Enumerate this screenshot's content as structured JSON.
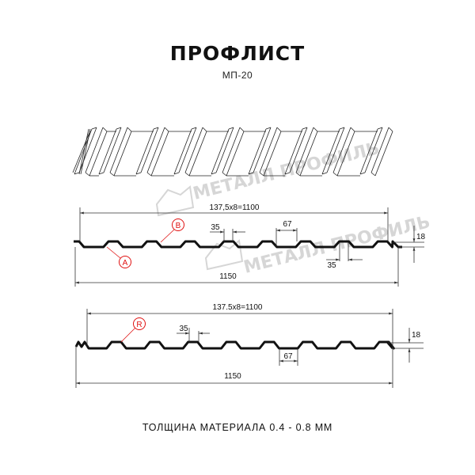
{
  "title": "ПРОФЛИСТ",
  "subtitle": "МП-20",
  "thickness_note": "ТОЛЩИНА МАТЕРИАЛА 0.4 - 0.8 ММ",
  "watermark": "МЕТАЛЛ ПРОФИЛЬ",
  "profile_a": {
    "pitch_dim": "137,5x8=1100",
    "width_dim": "1150",
    "crest_dim": "35",
    "valley_dim": "67",
    "crest_dim_lower": "35",
    "height_dim": "18",
    "callout_a": "A",
    "callout_b": "B"
  },
  "profile_r": {
    "pitch_dim": "137.5x8=1100",
    "width_dim": "1150",
    "crest_dim": "35",
    "valley_dim": "67",
    "height_dim": "18",
    "callout_r": "R"
  },
  "colors": {
    "callout": "#e01010",
    "profile": "#111111",
    "watermark": "#d6d6d6"
  }
}
